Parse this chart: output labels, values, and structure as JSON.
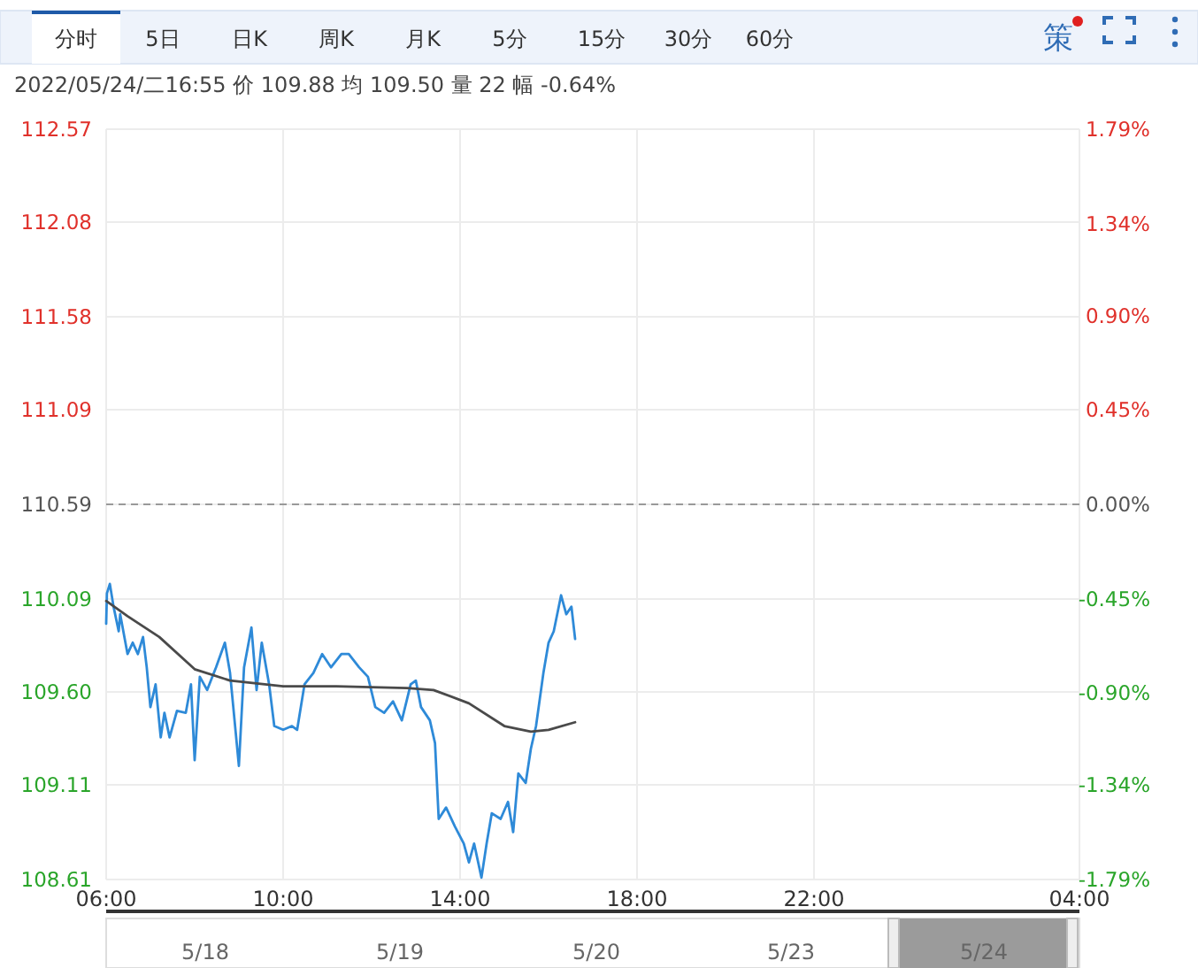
{
  "chart_data": {
    "type": "line",
    "subtitle": "2022/05/24/二16:55  价 109.88  均 109.50  量 22  幅 -0.64%",
    "annotations": [
      "分时",
      "5日",
      "日K",
      "周K",
      "月K",
      "5分",
      "15分",
      "30分",
      "60分",
      "策",
      "5/18",
      "5/19",
      "5/20",
      "5/23",
      "5/24"
    ],
    "xlim": [
      "2022-05-24T06:00",
      "2022-05-25T04:00"
    ],
    "xticks": [
      {
        "value": "2022-05-24T06:00",
        "label": "06:00"
      },
      {
        "value": "2022-05-24T10:00",
        "label": "10:00"
      },
      {
        "value": "2022-05-24T14:00",
        "label": "14:00"
      },
      {
        "value": "2022-05-24T18:00",
        "label": "18:00"
      },
      {
        "value": "2022-05-24T22:00",
        "label": "22:00"
      },
      {
        "value": "2022-05-25T04:00",
        "label": "04:00"
      }
    ],
    "ylim": [
      108.61,
      112.57
    ],
    "yticks": [
      108.61,
      109.11,
      {
        "value": 109.6,
        "label": "109.60"
      },
      110.09,
      110.59,
      111.09,
      111.58,
      112.08,
      112.57
    ],
    "y2lim": [
      -1.79,
      1.79
    ],
    "y2ticks": [
      {
        "value": -1.79,
        "label": "-1.79%"
      },
      {
        "value": -1.34,
        "label": "-1.34%"
      },
      {
        "value": -0.9,
        "label": "-0.90%"
      },
      {
        "value": -0.45,
        "label": "-0.45%"
      },
      {
        "value": 0,
        "label": "0.00%"
      },
      {
        "value": 0.45,
        "label": "0.45%"
      },
      {
        "value": 0.9,
        "label": "0.90%"
      },
      {
        "value": 1.34,
        "label": "1.34%"
      },
      {
        "value": 1.79,
        "label": "1.79%"
      }
    ],
    "grid": true,
    "marker": "none",
    "ref_lines": [
      {
        "axis": "y",
        "value": 110.59,
        "color": "#999999",
        "line_style": "dashed"
      }
    ],
    "series": [
      {
        "color": "#2e8ad8",
        "x": [
          "2022-05-24T06:00",
          "2022-05-24T06:01",
          "2022-05-24T06:05",
          "2022-05-24T06:10",
          "2022-05-24T06:17",
          "2022-05-24T06:19",
          "2022-05-24T06:29",
          "2022-05-24T06:36",
          "2022-05-24T06:43",
          "2022-05-24T06:50",
          "2022-05-24T06:55",
          "2022-05-24T07:00",
          "2022-05-24T07:07",
          "2022-05-24T07:14",
          "2022-05-24T07:19",
          "2022-05-24T07:26",
          "2022-05-24T07:36",
          "2022-05-24T07:48",
          "2022-05-24T07:55",
          "2022-05-24T08:00",
          "2022-05-24T08:07",
          "2022-05-24T08:17",
          "2022-05-24T08:29",
          "2022-05-24T08:41",
          "2022-05-24T08:48",
          "2022-05-24T09:00",
          "2022-05-24T09:07",
          "2022-05-24T09:17",
          "2022-05-24T09:24",
          "2022-05-24T09:31",
          "2022-05-24T09:41",
          "2022-05-24T09:48",
          "2022-05-24T10:00",
          "2022-05-24T10:12",
          "2022-05-24T10:19",
          "2022-05-24T10:29",
          "2022-05-24T10:41",
          "2022-05-24T10:53",
          "2022-05-24T11:05",
          "2022-05-24T11:19",
          "2022-05-24T11:29",
          "2022-05-24T11:43",
          "2022-05-24T11:55",
          "2022-05-24T12:05",
          "2022-05-24T12:17",
          "2022-05-24T12:29",
          "2022-05-24T12:41",
          "2022-05-24T12:53",
          "2022-05-24T13:00",
          "2022-05-24T13:07",
          "2022-05-24T13:19",
          "2022-05-24T13:26",
          "2022-05-24T13:31",
          "2022-05-24T13:41",
          "2022-05-24T13:53",
          "2022-05-24T14:05",
          "2022-05-24T14:12",
          "2022-05-24T14:19",
          "2022-05-24T14:29",
          "2022-05-24T14:36",
          "2022-05-24T14:43",
          "2022-05-24T14:55",
          "2022-05-24T15:05",
          "2022-05-24T15:12",
          "2022-05-24T15:19",
          "2022-05-24T15:29",
          "2022-05-24T15:36",
          "2022-05-24T15:43",
          "2022-05-24T15:53",
          "2022-05-24T16:00",
          "2022-05-24T16:07",
          "2022-05-24T16:17",
          "2022-05-24T16:24",
          "2022-05-24T16:31",
          "2022-05-24T16:36"
        ],
        "values": [
          109.96,
          110.12,
          110.17,
          110.05,
          109.92,
          110.01,
          109.8,
          109.86,
          109.8,
          109.89,
          109.73,
          109.52,
          109.64,
          109.36,
          109.49,
          109.36,
          109.5,
          109.49,
          109.64,
          109.24,
          109.68,
          109.61,
          109.73,
          109.86,
          109.7,
          109.21,
          109.73,
          109.94,
          109.61,
          109.86,
          109.64,
          109.42,
          109.4,
          109.42,
          109.4,
          109.64,
          109.7,
          109.8,
          109.73,
          109.8,
          109.8,
          109.73,
          109.68,
          109.52,
          109.49,
          109.55,
          109.45,
          109.64,
          109.66,
          109.52,
          109.45,
          109.33,
          108.93,
          108.99,
          108.89,
          108.8,
          108.7,
          108.8,
          108.62,
          108.8,
          108.96,
          108.93,
          109.02,
          108.86,
          109.17,
          109.12,
          109.3,
          109.42,
          109.7,
          109.86,
          109.92,
          110.11,
          110.01,
          110.05,
          109.88
        ]
      },
      {
        "color": "#4a4a4a",
        "x": [
          "2022-05-24T06:00",
          "2022-05-24T06:29",
          "2022-05-24T07:12",
          "2022-05-24T08:00",
          "2022-05-24T08:48",
          "2022-05-24T10:00",
          "2022-05-24T11:12",
          "2022-05-24T12:48",
          "2022-05-24T13:24",
          "2022-05-24T14:12",
          "2022-05-24T15:00",
          "2022-05-24T15:36",
          "2022-05-24T16:00",
          "2022-05-24T16:36"
        ],
        "values": [
          110.08,
          110.0,
          109.89,
          109.72,
          109.66,
          109.63,
          109.63,
          109.62,
          109.61,
          109.54,
          109.42,
          109.39,
          109.4,
          109.44
        ]
      }
    ]
  }
}
